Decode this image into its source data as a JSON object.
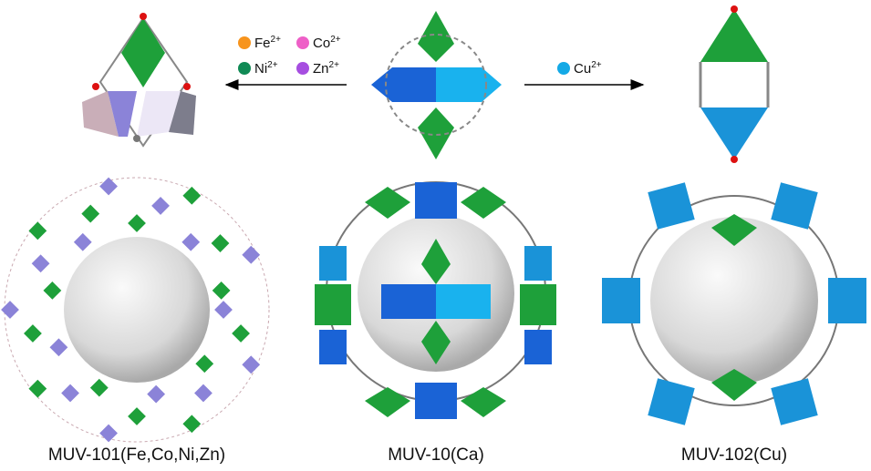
{
  "left_ions": [
    {
      "symbol": "Fe",
      "charge": "2+",
      "color": "#f7941d"
    },
    {
      "symbol": "Co",
      "charge": "2+",
      "color": "#ee5fc7"
    },
    {
      "symbol": "Ni",
      "charge": "2+",
      "color": "#108a55"
    },
    {
      "symbol": "Zn",
      "charge": "2+",
      "color": "#a64ee0"
    }
  ],
  "right_ions": [
    {
      "symbol": "Cu",
      "charge": "2+",
      "color": "#14a9e6"
    }
  ],
  "structures": [
    {
      "label": "MUV-101(Fe,Co,Ni,Zn)"
    },
    {
      "label": "MUV-10(Ca)"
    },
    {
      "label": "MUV-102(Cu)"
    }
  ]
}
